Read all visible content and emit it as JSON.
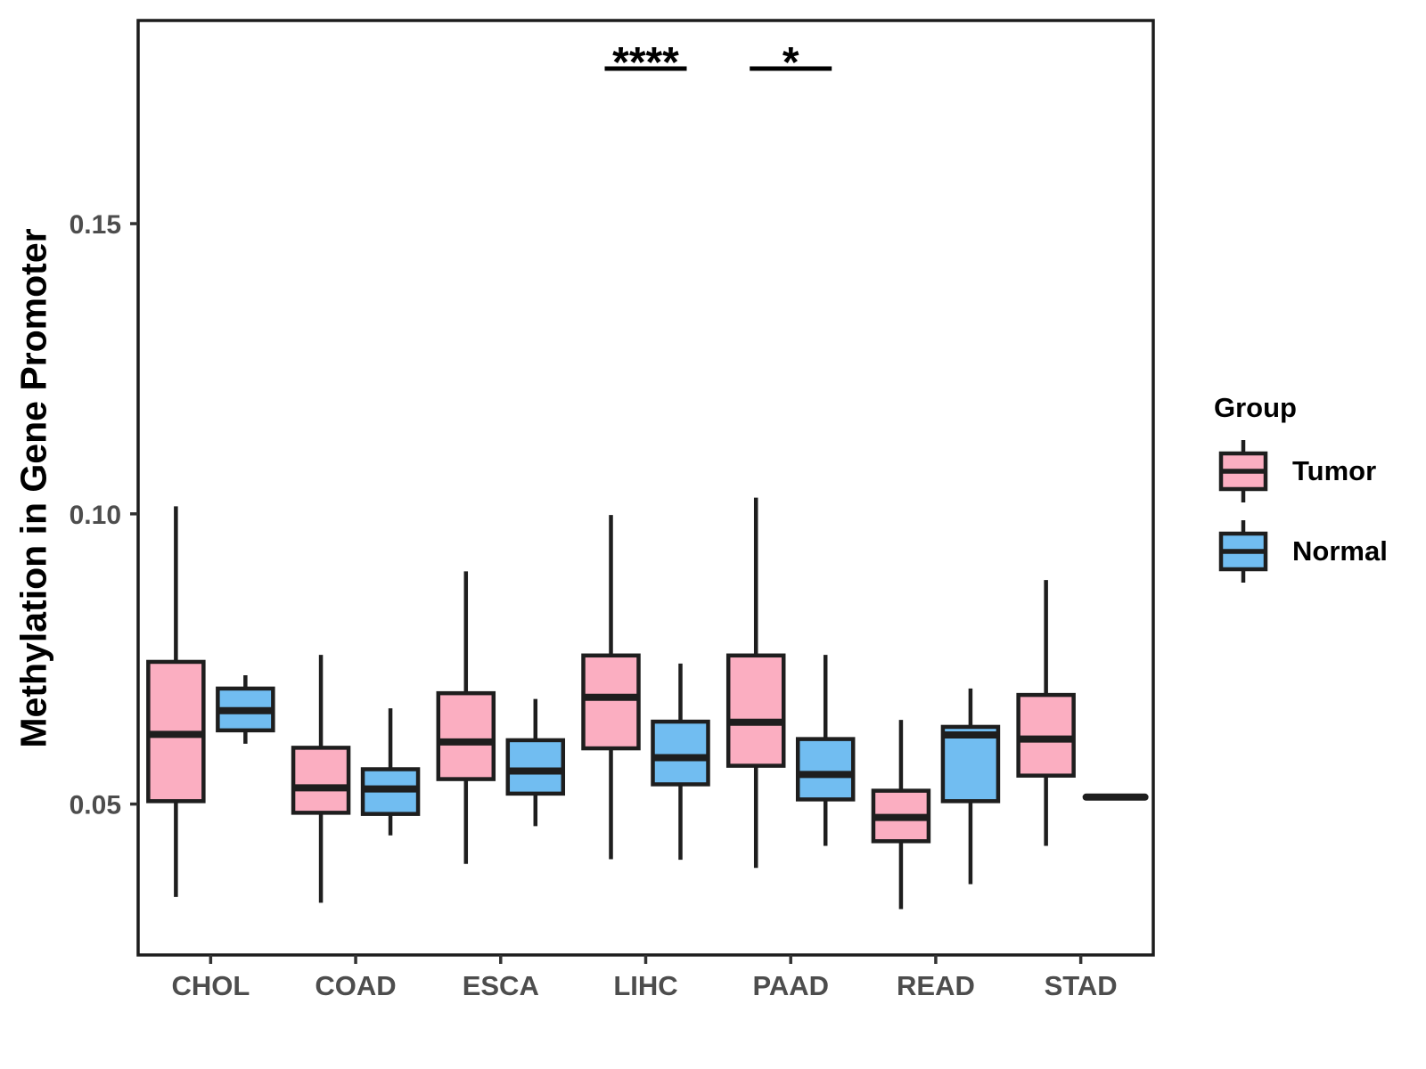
{
  "figure": {
    "background": "#FFFFFF",
    "panel_border_color": "#1C1C1C",
    "line_color": "#1E1E1E",
    "axis_text_color": "#4D4D4D",
    "title_color": "#000000"
  },
  "chart_data": {
    "type": "grouped_boxplot",
    "title": "",
    "xlabel": "",
    "ylabel": "Methylation in Gene Promoter",
    "categories": [
      "CHOL",
      "COAD",
      "ESCA",
      "LIHC",
      "PAAD",
      "READ",
      "STAD"
    ],
    "ylim": [
      0.024,
      0.185
    ],
    "yticks": [
      0.05,
      0.1,
      0.15
    ],
    "ytick_labels": [
      "0.05",
      "0.10",
      "0.15"
    ],
    "grid": "off",
    "legend_position": "right",
    "legend": {
      "title": "Group",
      "entries": [
        {
          "label": "Tumor",
          "color": "#FBAEC1"
        },
        {
          "label": "Normal",
          "color": "#71BDF1"
        }
      ]
    },
    "series": [
      {
        "name": "Tumor",
        "color": "#FBAEC1",
        "boxes": [
          {
            "category": "CHOL",
            "whisker_low": 0.034,
            "q1": 0.0505,
            "median": 0.062,
            "q3": 0.0745,
            "whisker_high": 0.1013
          },
          {
            "category": "COAD",
            "whisker_low": 0.033,
            "q1": 0.0485,
            "median": 0.0528,
            "q3": 0.0597,
            "whisker_high": 0.0757
          },
          {
            "category": "ESCA",
            "whisker_low": 0.0397,
            "q1": 0.0543,
            "median": 0.0607,
            "q3": 0.0691,
            "whisker_high": 0.0901
          },
          {
            "category": "LIHC",
            "whisker_low": 0.0405,
            "q1": 0.0596,
            "median": 0.0684,
            "q3": 0.0756,
            "whisker_high": 0.0998
          },
          {
            "category": "PAAD",
            "whisker_low": 0.039,
            "q1": 0.0566,
            "median": 0.0641,
            "q3": 0.0756,
            "whisker_high": 0.1028
          },
          {
            "category": "READ",
            "whisker_low": 0.0319,
            "q1": 0.0436,
            "median": 0.0477,
            "q3": 0.0523,
            "whisker_high": 0.0645
          },
          {
            "category": "STAD",
            "whisker_low": 0.0428,
            "q1": 0.0549,
            "median": 0.0612,
            "q3": 0.0688,
            "whisker_high": 0.0886
          }
        ]
      },
      {
        "name": "Normal",
        "color": "#71BDF1",
        "boxes": [
          {
            "category": "CHOL",
            "whisker_low": 0.0604,
            "q1": 0.0627,
            "median": 0.0661,
            "q3": 0.0699,
            "whisker_high": 0.0722
          },
          {
            "category": "COAD",
            "whisker_low": 0.0446,
            "q1": 0.0483,
            "median": 0.0526,
            "q3": 0.056,
            "whisker_high": 0.0665
          },
          {
            "category": "ESCA",
            "whisker_low": 0.0462,
            "q1": 0.0518,
            "median": 0.0557,
            "q3": 0.061,
            "whisker_high": 0.0681
          },
          {
            "category": "LIHC",
            "whisker_low": 0.0404,
            "q1": 0.0534,
            "median": 0.058,
            "q3": 0.0642,
            "whisker_high": 0.0742
          },
          {
            "category": "PAAD",
            "whisker_low": 0.0428,
            "q1": 0.0508,
            "median": 0.0551,
            "q3": 0.0612,
            "whisker_high": 0.0757
          },
          {
            "category": "READ",
            "whisker_low": 0.0362,
            "q1": 0.0505,
            "median": 0.0619,
            "q3": 0.0633,
            "whisker_high": 0.0699
          },
          {
            "category": "STAD",
            "single_value": true,
            "median": 0.0512
          }
        ]
      }
    ],
    "annotations": [
      {
        "category": "LIHC",
        "label": "****"
      },
      {
        "category": "PAAD",
        "label": "*"
      }
    ]
  }
}
